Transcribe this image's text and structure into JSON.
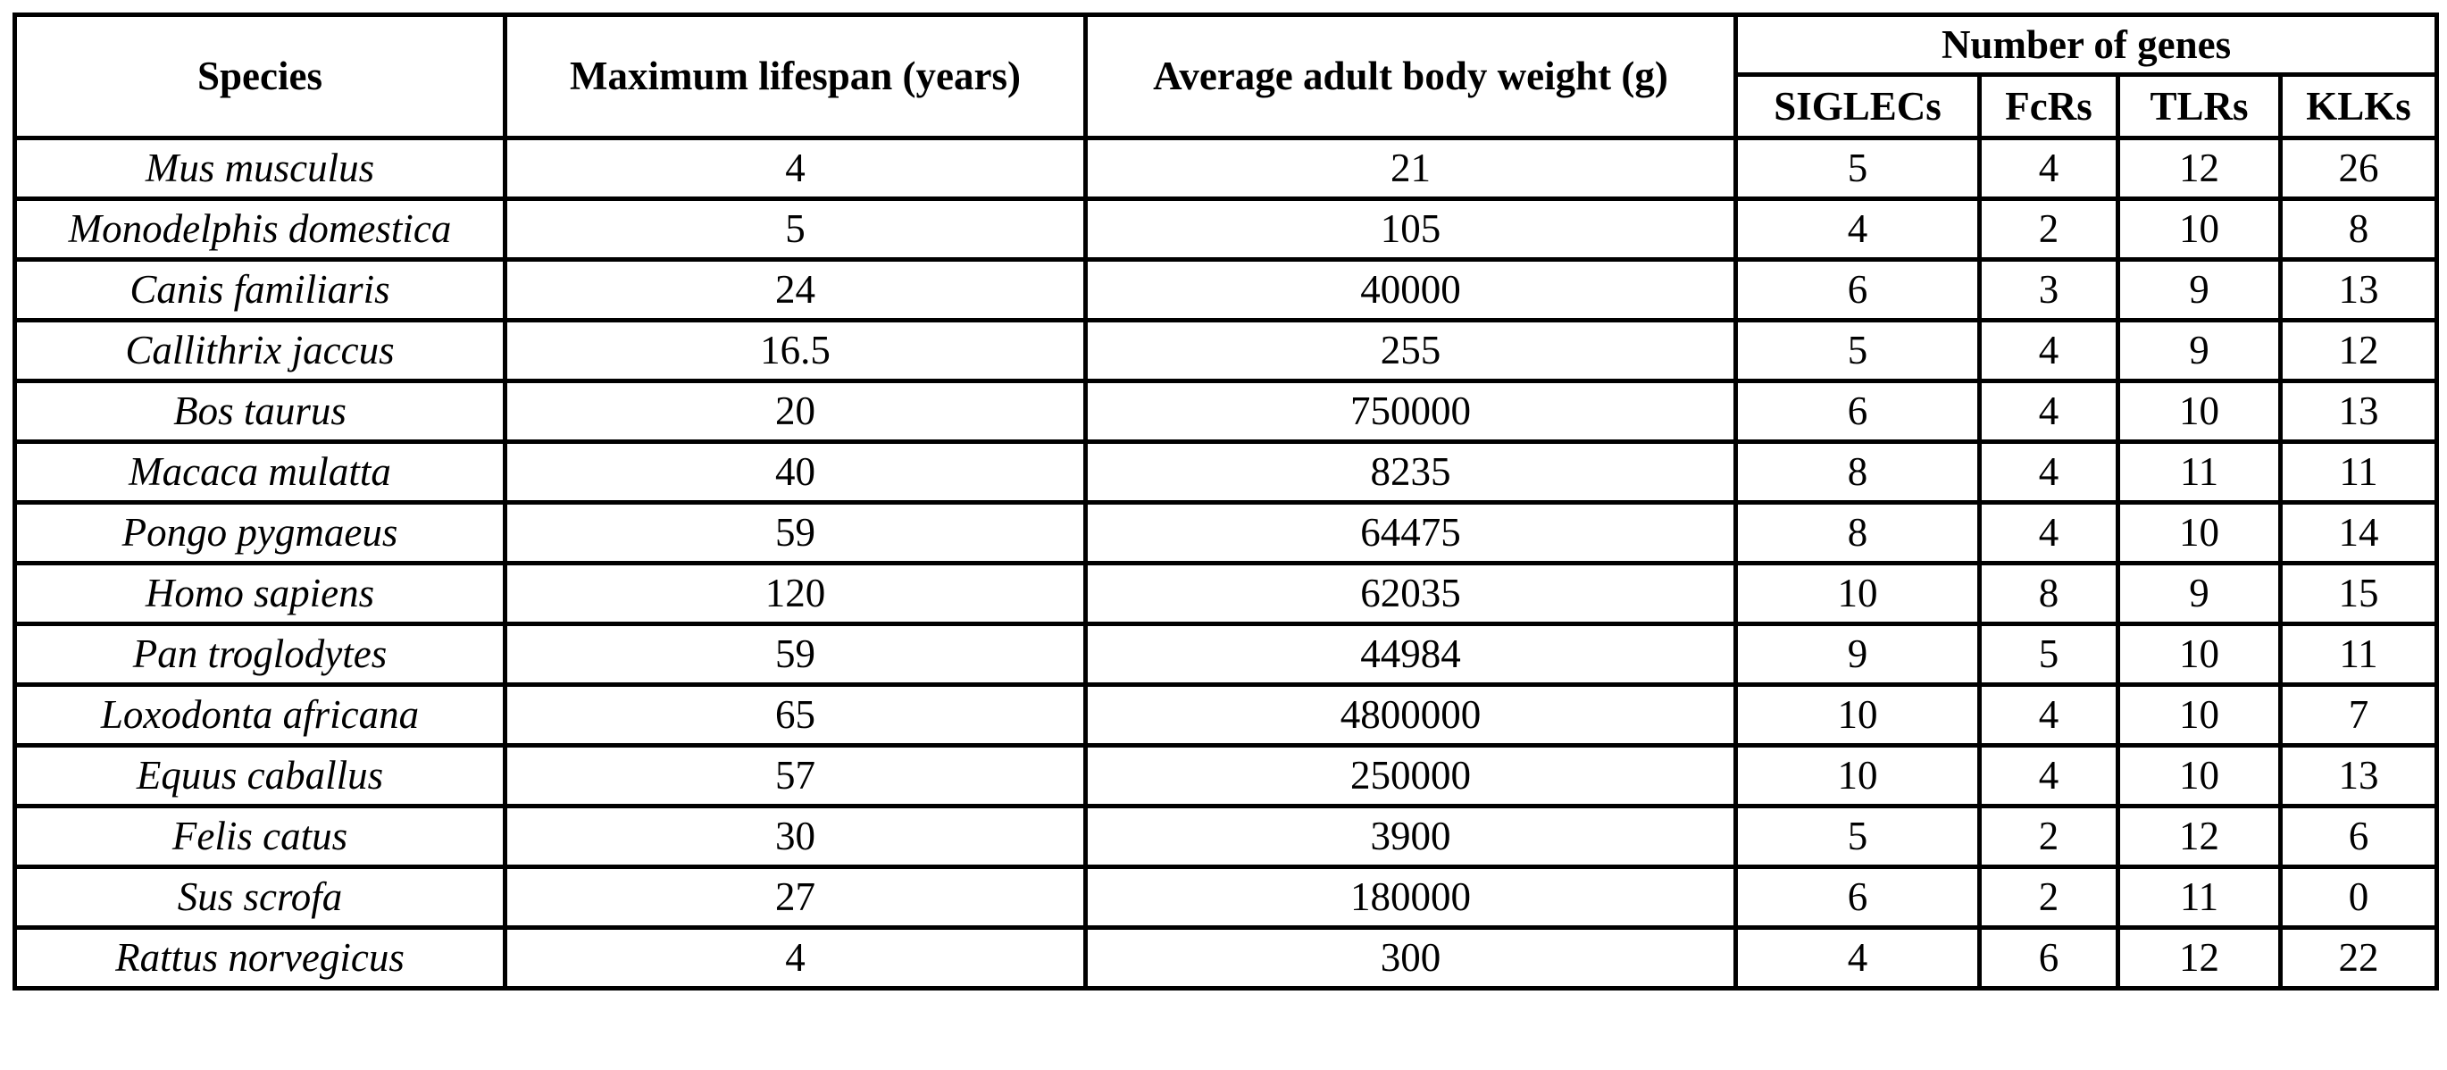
{
  "table": {
    "columns": [
      "Species",
      "Maximum lifespan (years)",
      "Average adult body weight (g)"
    ],
    "group_header": "Number of genes",
    "gene_columns": [
      "SIGLECs",
      "FcRs",
      "TLRs",
      "KLKs"
    ],
    "rows": [
      [
        "Mus musculus",
        4,
        21,
        5,
        4,
        12,
        26
      ],
      [
        "Monodelphis domestica",
        5,
        105,
        4,
        2,
        10,
        8
      ],
      [
        "Canis familiaris",
        24,
        40000,
        6,
        3,
        9,
        13
      ],
      [
        "Callithrix jaccus",
        16.5,
        255,
        5,
        4,
        9,
        12
      ],
      [
        "Bos taurus",
        20,
        750000,
        6,
        4,
        10,
        13
      ],
      [
        "Macaca mulatta",
        40,
        8235,
        8,
        4,
        11,
        11
      ],
      [
        "Pongo pygmaeus",
        59,
        64475,
        8,
        4,
        10,
        14
      ],
      [
        "Homo sapiens",
        120,
        62035,
        10,
        8,
        9,
        15
      ],
      [
        "Pan troglodytes",
        59,
        44984,
        9,
        5,
        10,
        11
      ],
      [
        "Loxodonta africana",
        65,
        4800000,
        10,
        4,
        10,
        7
      ],
      [
        "Equus caballus",
        57,
        250000,
        10,
        4,
        10,
        13
      ],
      [
        "Felis catus",
        30,
        3900,
        5,
        2,
        12,
        6
      ],
      [
        "Sus scrofa",
        27,
        180000,
        6,
        2,
        11,
        0
      ],
      [
        "Rattus norvegicus",
        4,
        300,
        4,
        6,
        12,
        22
      ]
    ]
  }
}
